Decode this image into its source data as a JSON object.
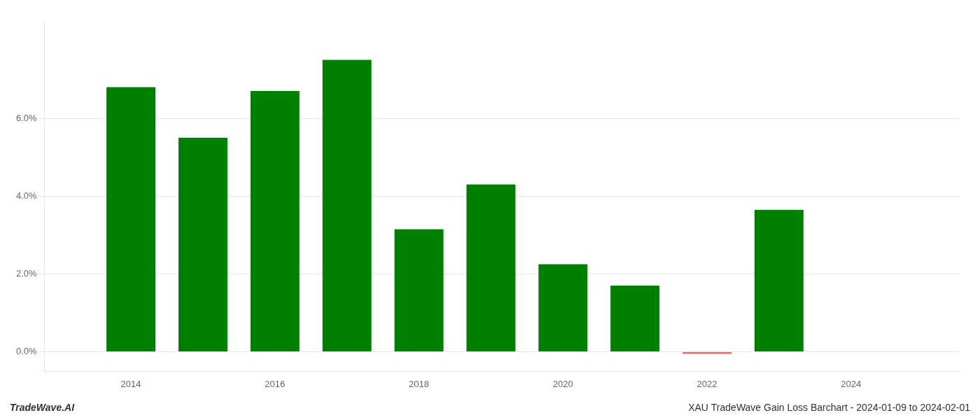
{
  "chart_data": {
    "type": "bar",
    "x": [
      2014,
      2015,
      2016,
      2017,
      2018,
      2019,
      2020,
      2021,
      2022,
      2023
    ],
    "values": [
      0.068,
      0.055,
      0.067,
      0.075,
      0.0315,
      0.043,
      0.0225,
      0.017,
      -0.0005,
      0.0365
    ],
    "colors": [
      "#008000",
      "#008000",
      "#008000",
      "#008000",
      "#008000",
      "#008000",
      "#008000",
      "#008000",
      "#ff6666",
      "#008000"
    ],
    "xlim": [
      2012.8,
      2025.5
    ],
    "xticks": [
      2014,
      2016,
      2018,
      2020,
      2022,
      2024
    ],
    "ylim": [
      -0.005,
      0.085
    ],
    "yticks": [
      {
        "value": 0.0,
        "label": "0.0%"
      },
      {
        "value": 0.02,
        "label": "2.0%"
      },
      {
        "value": 0.04,
        "label": "4.0%"
      },
      {
        "value": 0.06,
        "label": "6.0%"
      }
    ],
    "grid": true,
    "annotations": [
      "TradeWave.AI",
      "XAU TradeWave Gain Loss Barchart - 2024-01-09 to 2024-02-01"
    ]
  }
}
